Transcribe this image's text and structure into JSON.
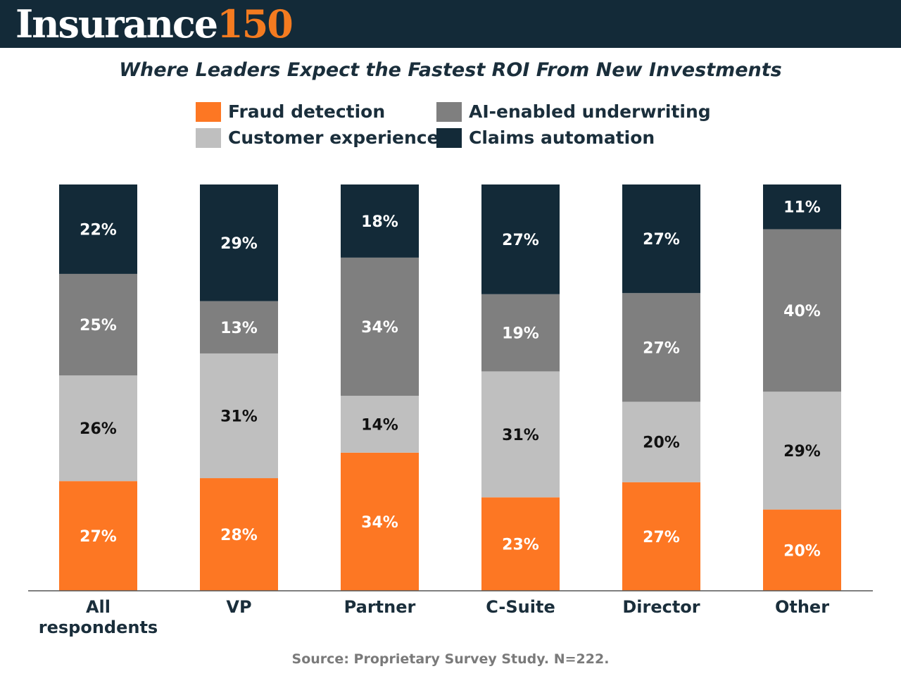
{
  "header": {
    "logo_word": "Insurance",
    "logo_number": "150"
  },
  "colors": {
    "header_bg": "#132a38",
    "brand_orange": "#f47b20",
    "fraud": "#fd7723",
    "ai": "#7f7f7f",
    "customer": "#bfbfbf",
    "claims": "#132a38"
  },
  "chart_data": {
    "type": "bar",
    "stacked": true,
    "normalized_percent": true,
    "title": "Where Leaders Expect the Fastest ROI From New Investments",
    "categories": [
      "All respondents",
      "VP",
      "Partner",
      "C-Suite",
      "Director",
      "Other"
    ],
    "series": [
      {
        "name": "Fraud detection",
        "color": "#fd7723",
        "label_color": "#ffffff",
        "values": [
          27,
          28,
          34,
          23,
          27,
          20
        ]
      },
      {
        "name": "Customer experience",
        "color": "#bfbfbf",
        "label_color": "#111111",
        "values": [
          26,
          31,
          14,
          31,
          20,
          29
        ]
      },
      {
        "name": "AI-enabled underwriting",
        "color": "#7f7f7f",
        "label_color": "#ffffff",
        "values": [
          25,
          13,
          34,
          19,
          27,
          40
        ]
      },
      {
        "name": "Claims automation",
        "color": "#132a38",
        "label_color": "#ffffff",
        "values": [
          22,
          29,
          18,
          27,
          27,
          11
        ]
      }
    ],
    "legend_position": "top",
    "value_suffix": "%",
    "xlabel": "",
    "ylabel": "",
    "grid": false
  },
  "footer": {
    "source": "Source: Proprietary Survey Study. N=222."
  }
}
